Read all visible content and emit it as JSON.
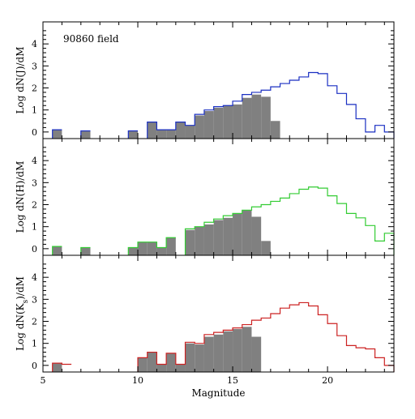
{
  "chart_data": [
    {
      "type": "histogram",
      "title": "90860 field",
      "ylabel": "Log dN(J)/dM",
      "xlabel": "",
      "xlim": [
        5,
        23.5
      ],
      "ylim": [
        -0.3,
        5
      ],
      "yticks": [
        0,
        1,
        2,
        3,
        4
      ],
      "xticks": [
        5,
        10,
        15,
        20
      ],
      "show_xtick_labels": false,
      "bin_width": 0.5,
      "series": [
        {
          "kind": "filled",
          "color": "#808080",
          "bins": [
            [
              5.5,
              6,
              0.1
            ],
            [
              7,
              7.5,
              0.05
            ],
            [
              9.5,
              10,
              0.05
            ],
            [
              10.5,
              11,
              0.45
            ],
            [
              11,
              11.5,
              0.1
            ],
            [
              11.5,
              12,
              0.1
            ],
            [
              12,
              12.5,
              0.45
            ],
            [
              12.5,
              13,
              0.3
            ],
            [
              13,
              13.5,
              0.75
            ],
            [
              13.5,
              14,
              0.95
            ],
            [
              14,
              14.5,
              1.1
            ],
            [
              14.5,
              15,
              1.2
            ],
            [
              15,
              15.5,
              1.25
            ],
            [
              15.5,
              16,
              1.55
            ],
            [
              16,
              16.5,
              1.7
            ],
            [
              16.5,
              17,
              1.6
            ],
            [
              17,
              17.5,
              0.5
            ]
          ]
        },
        {
          "kind": "outline",
          "color": "#1a2fc2",
          "bins": [
            [
              5.5,
              6,
              0.1
            ],
            [
              7,
              7.5,
              0.05
            ],
            [
              9.5,
              10,
              0.05
            ],
            [
              10.5,
              11,
              0.45
            ],
            [
              11,
              11.5,
              0.1
            ],
            [
              11.5,
              12,
              0.1
            ],
            [
              12,
              12.5,
              0.45
            ],
            [
              12.5,
              13,
              0.3
            ],
            [
              13,
              13.5,
              0.8
            ],
            [
              13.5,
              14,
              1.0
            ],
            [
              14,
              14.5,
              1.15
            ],
            [
              14.5,
              15,
              1.2
            ],
            [
              15,
              15.5,
              1.4
            ],
            [
              15.5,
              16,
              1.7
            ],
            [
              16,
              16.5,
              1.8
            ],
            [
              16.5,
              17,
              1.9
            ],
            [
              17,
              17.5,
              2.05
            ],
            [
              17.5,
              18,
              2.2
            ],
            [
              18,
              18.5,
              2.35
            ],
            [
              18.5,
              19,
              2.5
            ],
            [
              19,
              19.5,
              2.7
            ],
            [
              19.5,
              20,
              2.65
            ],
            [
              20,
              20.5,
              2.1
            ],
            [
              20.5,
              21,
              1.75
            ],
            [
              21,
              21.5,
              1.25
            ],
            [
              21.5,
              22,
              0.6
            ],
            [
              22,
              22.5,
              0.0
            ],
            [
              22.5,
              23,
              0.3
            ],
            [
              23,
              23.5,
              0.0
            ]
          ]
        }
      ]
    },
    {
      "type": "histogram",
      "title": "",
      "ylabel": "Log dN(H)/dM",
      "xlabel": "",
      "xlim": [
        5,
        23.5
      ],
      "ylim": [
        -0.3,
        5
      ],
      "yticks": [
        0,
        1,
        2,
        3,
        4
      ],
      "xticks": [
        5,
        10,
        15,
        20
      ],
      "show_xtick_labels": false,
      "bin_width": 0.5,
      "series": [
        {
          "kind": "filled",
          "color": "#808080",
          "bins": [
            [
              5.5,
              6,
              0.1
            ],
            [
              7,
              7.5,
              0.05
            ],
            [
              9.5,
              10,
              0.05
            ],
            [
              10,
              10.5,
              0.3
            ],
            [
              10.5,
              11,
              0.3
            ],
            [
              11,
              11.5,
              0.05
            ],
            [
              11.5,
              12,
              0.5
            ],
            [
              12.5,
              13,
              0.85
            ],
            [
              13,
              13.5,
              1.0
            ],
            [
              13.5,
              14,
              1.1
            ],
            [
              14,
              14.5,
              1.3
            ],
            [
              14.5,
              15,
              1.4
            ],
            [
              15,
              15.5,
              1.6
            ],
            [
              15.5,
              16,
              1.75
            ],
            [
              16,
              16.5,
              1.45
            ],
            [
              16.5,
              17,
              0.35
            ]
          ]
        },
        {
          "kind": "outline",
          "color": "#33cc33",
          "bins": [
            [
              5.5,
              6,
              0.1
            ],
            [
              7,
              7.5,
              0.05
            ],
            [
              9.5,
              10,
              0.05
            ],
            [
              10,
              10.5,
              0.3
            ],
            [
              10.5,
              11,
              0.3
            ],
            [
              11,
              11.5,
              0.05
            ],
            [
              11.5,
              12,
              0.5
            ],
            [
              12.5,
              13,
              0.9
            ],
            [
              13,
              13.5,
              1.0
            ],
            [
              13.5,
              14,
              1.2
            ],
            [
              14,
              14.5,
              1.35
            ],
            [
              14.5,
              15,
              1.5
            ],
            [
              15,
              15.5,
              1.6
            ],
            [
              15.5,
              16,
              1.75
            ],
            [
              16,
              16.5,
              1.9
            ],
            [
              16.5,
              17,
              2.0
            ],
            [
              17,
              17.5,
              2.15
            ],
            [
              17.5,
              18,
              2.3
            ],
            [
              18,
              18.5,
              2.5
            ],
            [
              18.5,
              19,
              2.7
            ],
            [
              19,
              19.5,
              2.8
            ],
            [
              19.5,
              20,
              2.75
            ],
            [
              20,
              20.5,
              2.4
            ],
            [
              20.5,
              21,
              2.05
            ],
            [
              21,
              21.5,
              1.6
            ],
            [
              21.5,
              22,
              1.4
            ],
            [
              22,
              22.5,
              1.05
            ],
            [
              22.5,
              23,
              0.35
            ],
            [
              23,
              23.5,
              0.7
            ]
          ]
        }
      ]
    },
    {
      "type": "histogram",
      "title": "",
      "ylabel": "Log dN(Ks)/dM",
      "ylabel_base": "Log dN(K",
      "ylabel_sub": "s",
      "ylabel_tail": ")/dM",
      "xlabel": "Magnitude",
      "xlim": [
        5,
        23.5
      ],
      "ylim": [
        -0.3,
        5
      ],
      "yticks": [
        0,
        1,
        2,
        3,
        4
      ],
      "xticks": [
        5,
        10,
        15,
        20
      ],
      "xtick_labels": [
        "5",
        "10",
        "15",
        "20"
      ],
      "show_xtick_labels": true,
      "bin_width": 0.5,
      "series": [
        {
          "kind": "filled",
          "color": "#808080",
          "bins": [
            [
              5.5,
              6,
              0.1
            ],
            [
              10,
              10.5,
              0.35
            ],
            [
              10.5,
              11,
              0.6
            ],
            [
              11,
              11.5,
              0.05
            ],
            [
              11.5,
              12,
              0.55
            ],
            [
              12,
              12.5,
              0.05
            ],
            [
              12.5,
              13,
              1.0
            ],
            [
              13,
              13.5,
              0.95
            ],
            [
              13.5,
              14,
              1.3
            ],
            [
              14,
              14.5,
              1.4
            ],
            [
              14.5,
              15,
              1.55
            ],
            [
              15,
              15.5,
              1.65
            ],
            [
              15.5,
              16,
              1.75
            ],
            [
              16,
              16.5,
              1.3
            ]
          ]
        },
        {
          "kind": "outline",
          "color": "#cc2222",
          "bins": [
            [
              5.5,
              6,
              0.1
            ],
            [
              6,
              6.5,
              0.05
            ],
            [
              10,
              10.5,
              0.35
            ],
            [
              10.5,
              11,
              0.6
            ],
            [
              11,
              11.5,
              0.05
            ],
            [
              11.5,
              12,
              0.55
            ],
            [
              12,
              12.5,
              0.05
            ],
            [
              12.5,
              13,
              1.05
            ],
            [
              13,
              13.5,
              1.0
            ],
            [
              13.5,
              14,
              1.4
            ],
            [
              14,
              14.5,
              1.5
            ],
            [
              14.5,
              15,
              1.6
            ],
            [
              15,
              15.5,
              1.7
            ],
            [
              15.5,
              16,
              1.85
            ],
            [
              16,
              16.5,
              2.05
            ],
            [
              16.5,
              17,
              2.15
            ],
            [
              17,
              17.5,
              2.35
            ],
            [
              17.5,
              18,
              2.6
            ],
            [
              18,
              18.5,
              2.75
            ],
            [
              18.5,
              19,
              2.85
            ],
            [
              19,
              19.5,
              2.7
            ],
            [
              19.5,
              20,
              2.3
            ],
            [
              20,
              20.5,
              1.9
            ],
            [
              20.5,
              21,
              1.35
            ],
            [
              21,
              21.5,
              0.9
            ],
            [
              21.5,
              22,
              0.8
            ],
            [
              22,
              22.5,
              0.75
            ],
            [
              22.5,
              23,
              0.35
            ],
            [
              23,
              23.5,
              0.0
            ]
          ]
        }
      ]
    }
  ]
}
